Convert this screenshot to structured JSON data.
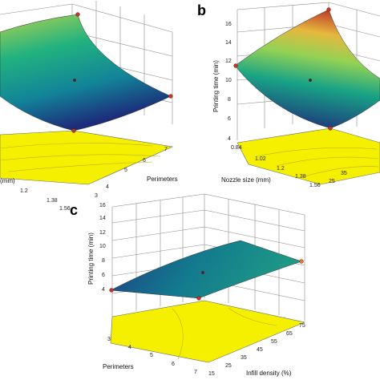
{
  "chart_data": [
    {
      "panel": "a",
      "type": "surface3d",
      "panel_label": "",
      "x_axis_label": "(mm)",
      "x_ticks": [
        "1.2",
        "1.38",
        "1.56"
      ],
      "y_axis_label": "Perimeters",
      "y_ticks": [
        "3",
        "4",
        "5",
        "6",
        "7"
      ],
      "z_axis_label": "",
      "z_ticks": [],
      "contour_plane_color": "#f5f000"
    },
    {
      "panel": "b",
      "type": "surface3d",
      "panel_label": "b",
      "x_axis_label": "Nozzle size (mm)",
      "x_ticks": [
        "0.84",
        "1.02",
        "1.2",
        "1.38",
        "1.56"
      ],
      "y_axis_label": "",
      "y_ticks": [
        "25",
        "35"
      ],
      "z_axis_label": "Printing time (min)",
      "z_ticks": [
        "4",
        "6",
        "8",
        "10",
        "12",
        "14",
        "16"
      ],
      "contour_plane_color": "#f5f000"
    },
    {
      "panel": "c",
      "type": "surface3d",
      "panel_label": "c",
      "x_axis_label": "Perimeters",
      "x_ticks": [
        "3",
        "4",
        "5",
        "6",
        "7"
      ],
      "y_axis_label": "Infill density (%)",
      "y_ticks": [
        "15",
        "25",
        "35",
        "45",
        "55",
        "65",
        "75"
      ],
      "z_axis_label": "Printing time (min)",
      "z_ticks": [
        "4",
        "6",
        "8",
        "10",
        "12",
        "14",
        "16"
      ],
      "contour_plane_color": "#f5f000"
    }
  ]
}
